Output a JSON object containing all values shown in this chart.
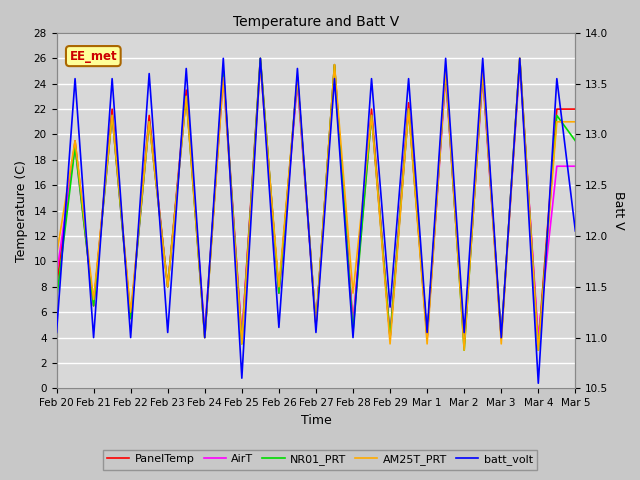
{
  "title": "Temperature and Batt V",
  "xlabel": "Time",
  "ylabel_left": "Temperature (C)",
  "ylabel_right": "Batt V",
  "annotation": "EE_met",
  "ylim_left": [
    0,
    28
  ],
  "ylim_right": [
    10.5,
    14.0
  ],
  "yticks_left": [
    0,
    2,
    4,
    6,
    8,
    10,
    12,
    14,
    16,
    18,
    20,
    22,
    24,
    26,
    28
  ],
  "yticks_right": [
    10.5,
    11.0,
    11.5,
    12.0,
    12.5,
    13.0,
    13.5,
    14.0
  ],
  "bg_color": "#c8c8c8",
  "plot_bg_color": "#d8d8d8",
  "grid_color": "#ffffff",
  "colors": {
    "PanelTemp": "#ff0000",
    "AirT": "#ff00ff",
    "NR01_PRT": "#00dd00",
    "AM25T_PRT": "#ffaa00",
    "batt_volt": "#0000ff"
  },
  "lw": 1.2,
  "xtick_labels": [
    "Feb 20",
    "Feb 21",
    "Feb 22",
    "Feb 23",
    "Feb 24",
    "Feb 25",
    "Feb 26",
    "Feb 27",
    "Feb 28",
    "Feb 29",
    "Mar 1",
    "Mar 2",
    "Mar 3",
    "Mar 4",
    "Mar 5"
  ],
  "num_days": 14,
  "panel_temp": [
    8.0,
    19.5,
    6.5,
    22.0,
    5.5,
    21.5,
    8.0,
    23.5,
    4.0,
    25.0,
    4.0,
    26.0,
    7.5,
    24.5,
    5.0,
    25.5,
    5.0,
    22.0,
    4.0,
    22.5,
    4.0,
    25.0,
    3.5,
    25.0,
    4.0,
    26.0,
    3.5,
    22.0,
    22.0
  ],
  "air_t": [
    9.0,
    19.0,
    6.5,
    21.5,
    5.5,
    21.0,
    8.0,
    23.0,
    4.5,
    24.5,
    4.0,
    25.5,
    7.5,
    24.0,
    5.0,
    25.0,
    5.0,
    21.5,
    4.0,
    22.0,
    4.0,
    24.5,
    3.5,
    24.5,
    4.0,
    25.5,
    4.0,
    17.5,
    17.5
  ],
  "nr01_prt": [
    7.0,
    19.0,
    6.5,
    21.5,
    5.5,
    21.0,
    8.0,
    23.0,
    4.0,
    25.0,
    3.5,
    26.0,
    7.5,
    24.5,
    5.0,
    25.5,
    4.5,
    21.5,
    4.0,
    22.0,
    4.0,
    25.0,
    3.0,
    25.0,
    4.0,
    26.0,
    3.0,
    21.5,
    19.5
  ],
  "am25t_prt": [
    10.5,
    19.5,
    7.0,
    21.5,
    6.0,
    21.0,
    8.0,
    23.0,
    4.0,
    24.5,
    3.5,
    25.5,
    8.0,
    24.5,
    5.0,
    25.5,
    7.5,
    21.5,
    3.5,
    22.0,
    3.5,
    25.0,
    3.0,
    25.0,
    3.5,
    26.0,
    3.0,
    21.0,
    21.0
  ],
  "batt_volt": [
    11.05,
    13.55,
    11.0,
    13.55,
    11.0,
    13.6,
    11.05,
    13.65,
    11.0,
    13.75,
    10.6,
    13.75,
    11.1,
    13.65,
    11.05,
    13.55,
    11.0,
    13.55,
    11.3,
    13.55,
    11.05,
    13.75,
    11.05,
    13.75,
    11.0,
    13.75,
    10.55,
    13.55,
    12.05
  ]
}
